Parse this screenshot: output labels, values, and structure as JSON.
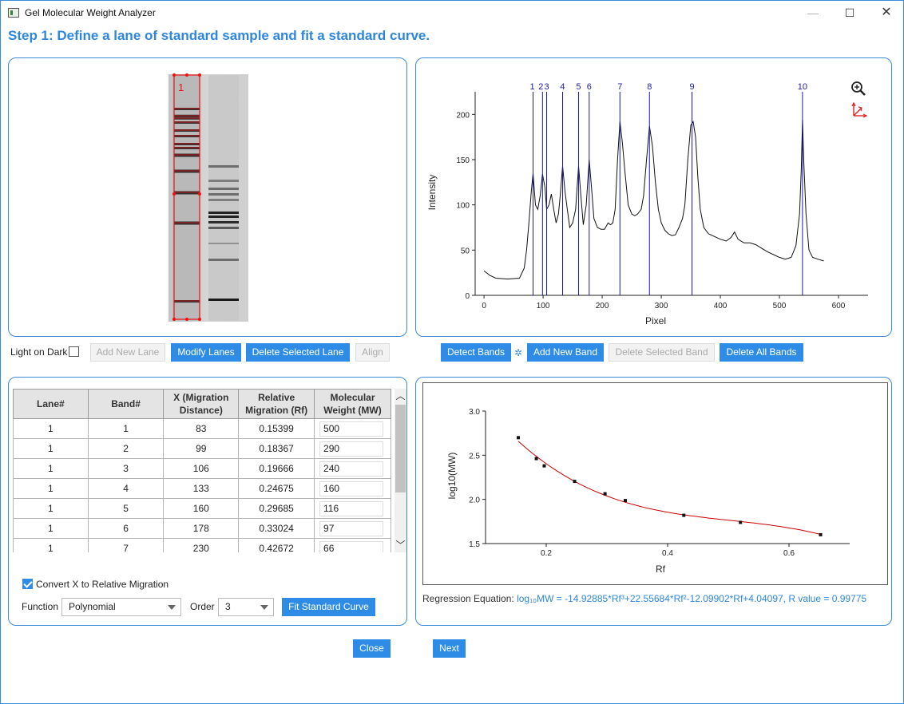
{
  "window": {
    "title": "Gel Molecular Weight Analyzer",
    "minimize": "—",
    "maximize": "☐",
    "close": "✕"
  },
  "step_title": "Step 1: Define a lane of standard sample and fit a standard curve.",
  "gel": {
    "lane_label": "1"
  },
  "lane_controls": {
    "light_on_dark": "Light on Dark",
    "add_new_lane": "Add New Lane",
    "modify_lanes": "Modify Lanes",
    "delete_selected_lane": "Delete Selected Lane",
    "align": "Align"
  },
  "band_controls": {
    "detect_bands": "Detect Bands",
    "add_new_band": "Add New Band",
    "delete_selected_band": "Delete Selected Band",
    "delete_all_bands": "Delete All Bands"
  },
  "profile_chart": {
    "xlabel": "Pixel",
    "ylabel": "Intensity",
    "x_ticks": [
      "0",
      "100",
      "200",
      "300",
      "400",
      "500",
      "600"
    ],
    "y_ticks": [
      "0",
      "50",
      "100",
      "150",
      "200"
    ],
    "band_labels": [
      "1",
      "2",
      "3",
      "4",
      "5",
      "6",
      "7",
      "8",
      "9",
      "10"
    ],
    "band_positions": [
      83,
      99,
      106,
      133,
      160,
      178,
      230,
      280,
      352,
      539
    ]
  },
  "table": {
    "headers": [
      "Lane#",
      "Band#",
      "X (Migration Distance)",
      "Relative Migration (Rf)",
      "Molecular Weight (MW)"
    ],
    "rows": [
      [
        "1",
        "1",
        "83",
        "0.15399",
        "500"
      ],
      [
        "1",
        "2",
        "99",
        "0.18367",
        "290"
      ],
      [
        "1",
        "3",
        "106",
        "0.19666",
        "240"
      ],
      [
        "1",
        "4",
        "133",
        "0.24675",
        "160"
      ],
      [
        "1",
        "5",
        "160",
        "0.29685",
        "116"
      ],
      [
        "1",
        "6",
        "178",
        "0.33024",
        "97"
      ],
      [
        "1",
        "7",
        "230",
        "0.42672",
        "66"
      ]
    ]
  },
  "fit_controls": {
    "convert_label": "Convert X to Relative Migration",
    "convert_checked": true,
    "function_label": "Function",
    "function_value": "Polynomial",
    "order_label": "Order",
    "order_value": "3",
    "fit_button": "Fit Standard Curve"
  },
  "chart_data": {
    "type": "scatter",
    "xlabel": "Rf",
    "ylabel": "log10(MW)",
    "xlim": [
      0.1,
      0.7
    ],
    "ylim": [
      1.5,
      3.0
    ],
    "x_ticks": [
      "0.2",
      "0.4",
      "0.6"
    ],
    "y_ticks": [
      "1.5",
      "2.0",
      "2.5",
      "3.0"
    ],
    "series": [
      {
        "x": [
          0.15399,
          0.18367,
          0.19666,
          0.24675,
          0.29685,
          0.33024,
          0.42672,
          0.52,
          0.652
        ],
        "y": [
          2.699,
          2.462,
          2.38,
          2.204,
          2.064,
          1.987,
          1.82,
          1.74,
          1.6
        ]
      }
    ],
    "fit_coefficients": [
      4.04097,
      -12.09902,
      22.55684,
      -14.92885
    ],
    "line_color": "#cc0000",
    "point_color": "#111111"
  },
  "regression": {
    "prefix": "Regression Equation:",
    "equation": "log₁₀MW = -14.92885*Rf³+22.55684*Rf²-12.09902*Rf+4.04097, R value = 0.99775"
  },
  "footer": {
    "close": "Close",
    "next": "Next"
  }
}
